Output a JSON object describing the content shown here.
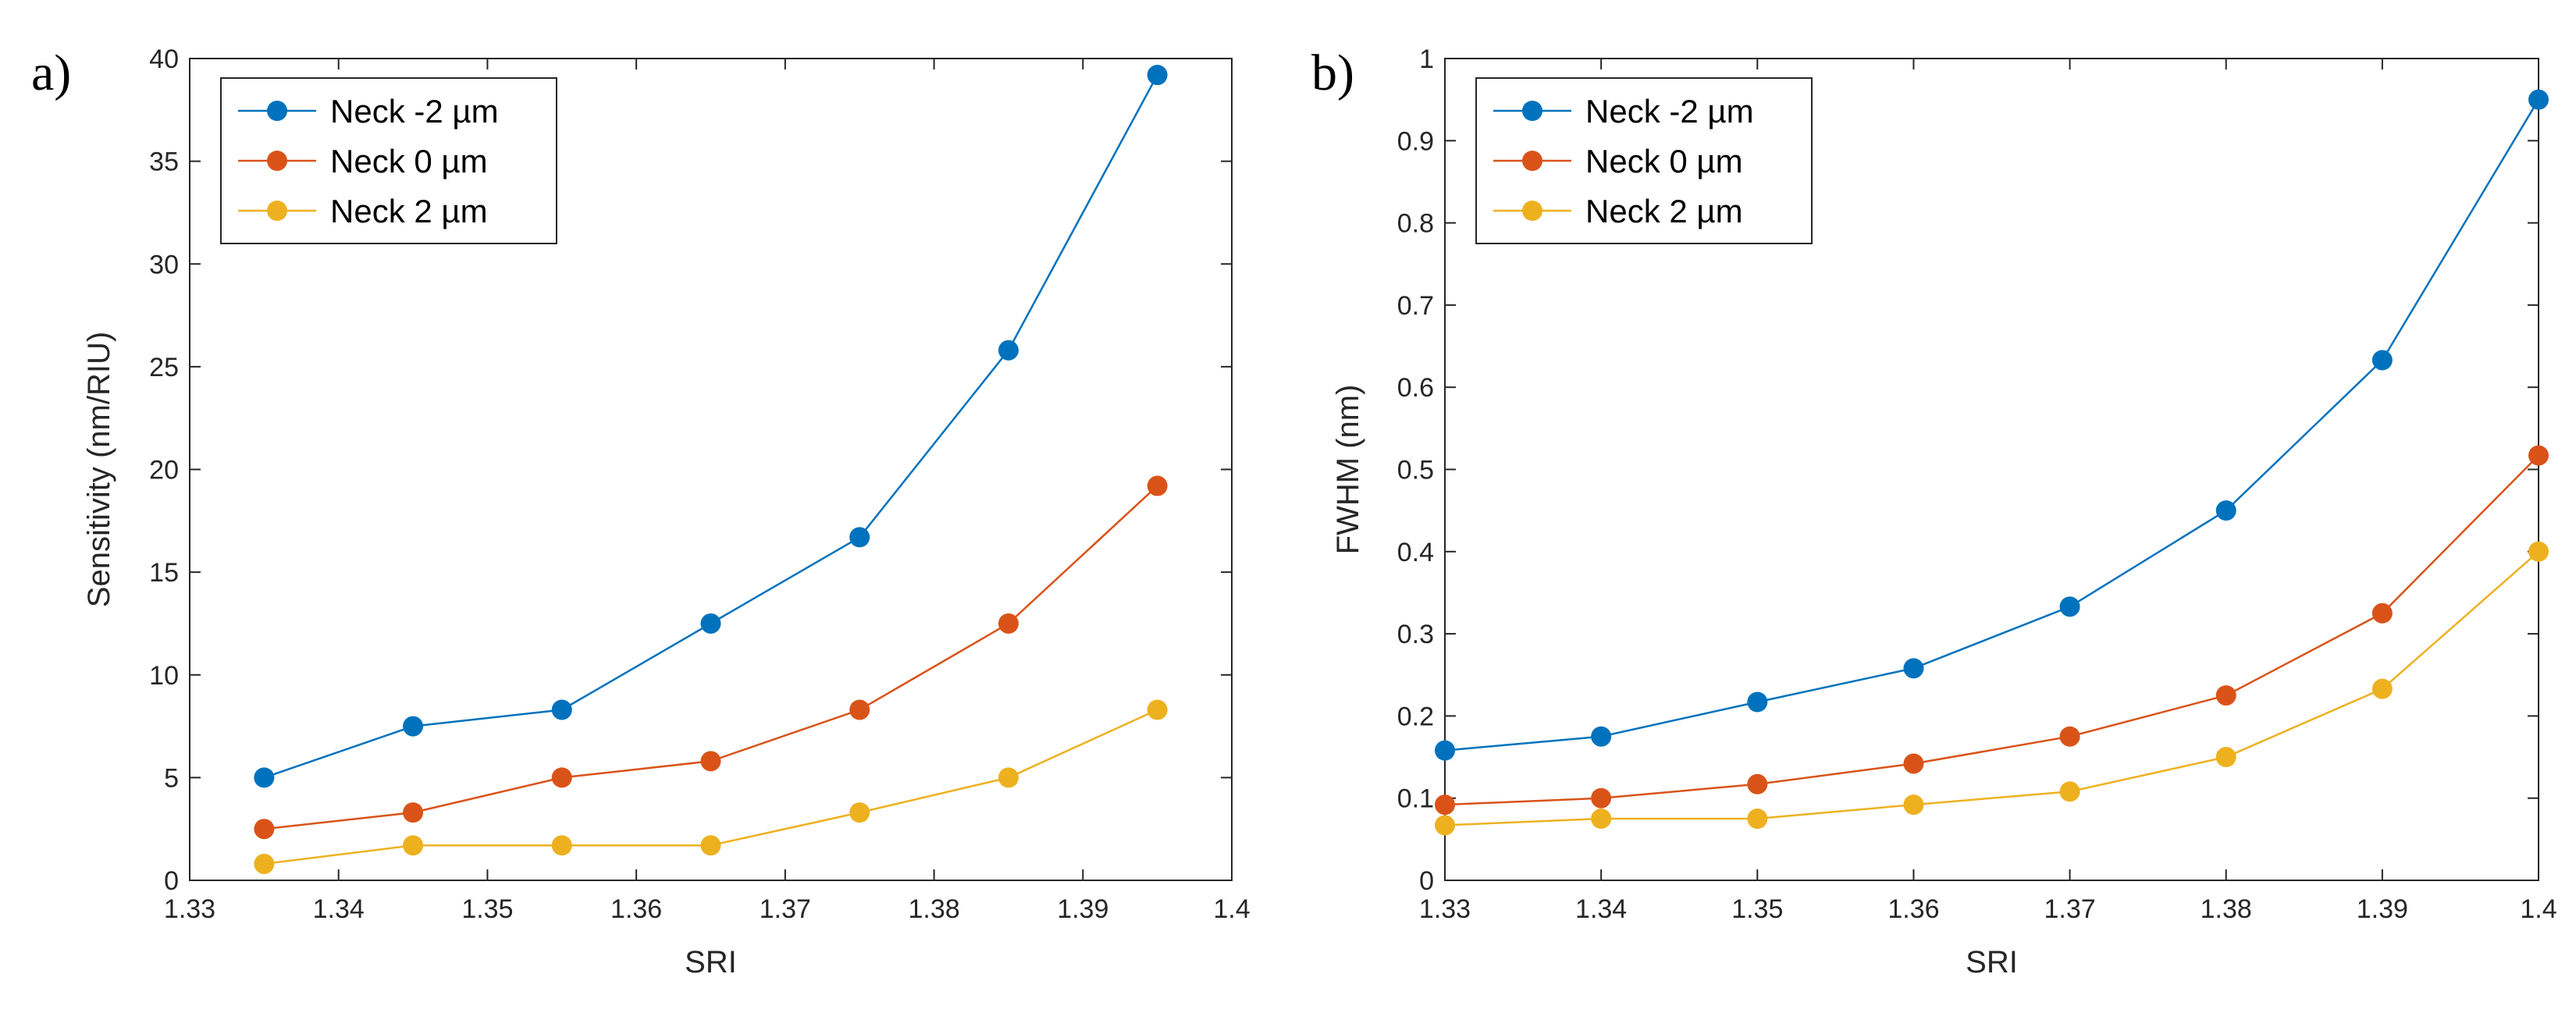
{
  "chart_data": [
    {
      "type": "line",
      "panel_label": "a)",
      "title": "",
      "xlabel": "SRI",
      "ylabel": "Sensitivity (nm/RIU)",
      "xlim": [
        1.33,
        1.4
      ],
      "ylim": [
        0,
        40
      ],
      "xticks": [
        1.33,
        1.34,
        1.35,
        1.36,
        1.37,
        1.38,
        1.39,
        1.4
      ],
      "xtick_labels": [
        "1.33",
        "1.34",
        "1.35",
        "1.36",
        "1.37",
        "1.38",
        "1.39",
        "1.4"
      ],
      "yticks": [
        0,
        5,
        10,
        15,
        20,
        25,
        30,
        35,
        40
      ],
      "ytick_labels": [
        "0",
        "5",
        "10",
        "15",
        "20",
        "25",
        "30",
        "35",
        "40"
      ],
      "grid": false,
      "legend_position": "top-left",
      "x": [
        1.335,
        1.345,
        1.355,
        1.365,
        1.375,
        1.385,
        1.395
      ],
      "series": [
        {
          "name": "Neck -2 µm",
          "color": "#0072BD",
          "values": [
            5.0,
            7.5,
            8.3,
            12.5,
            16.7,
            25.8,
            39.2
          ]
        },
        {
          "name": "Neck 0 µm",
          "color": "#D95319",
          "values": [
            2.5,
            3.3,
            5.0,
            5.8,
            8.3,
            12.5,
            19.2
          ]
        },
        {
          "name": "Neck 2 µm",
          "color": "#EDB120",
          "values": [
            0.8,
            1.7,
            1.7,
            1.7,
            3.3,
            5.0,
            8.3
          ]
        }
      ]
    },
    {
      "type": "line",
      "panel_label": "b)",
      "title": "",
      "xlabel": "SRI",
      "ylabel": "FWHM (nm)",
      "xlim": [
        1.33,
        1.4
      ],
      "ylim": [
        0,
        1
      ],
      "xticks": [
        1.33,
        1.34,
        1.35,
        1.36,
        1.37,
        1.38,
        1.39,
        1.4
      ],
      "xtick_labels": [
        "1.33",
        "1.34",
        "1.35",
        "1.36",
        "1.37",
        "1.38",
        "1.39",
        "1.4"
      ],
      "yticks": [
        0,
        0.1,
        0.2,
        0.3,
        0.4,
        0.5,
        0.6,
        0.7,
        0.8,
        0.9,
        1
      ],
      "ytick_labels": [
        "0",
        "0.1",
        "0.2",
        "0.3",
        "0.4",
        "0.5",
        "0.6",
        "0.7",
        "0.8",
        "0.9",
        "1"
      ],
      "grid": false,
      "legend_position": "top-left",
      "x": [
        1.33,
        1.34,
        1.35,
        1.36,
        1.37,
        1.38,
        1.39,
        1.4
      ],
      "series": [
        {
          "name": "Neck -2 µm",
          "color": "#0072BD",
          "values": [
            0.158,
            0.175,
            0.217,
            0.258,
            0.333,
            0.45,
            0.633,
            0.95
          ]
        },
        {
          "name": "Neck 0 µm",
          "color": "#D95319",
          "values": [
            0.092,
            0.1,
            0.117,
            0.142,
            0.175,
            0.225,
            0.325,
            0.517
          ]
        },
        {
          "name": "Neck 2 µm",
          "color": "#EDB120",
          "values": [
            0.067,
            0.075,
            0.075,
            0.092,
            0.108,
            0.15,
            0.233,
            0.4
          ]
        }
      ]
    }
  ]
}
